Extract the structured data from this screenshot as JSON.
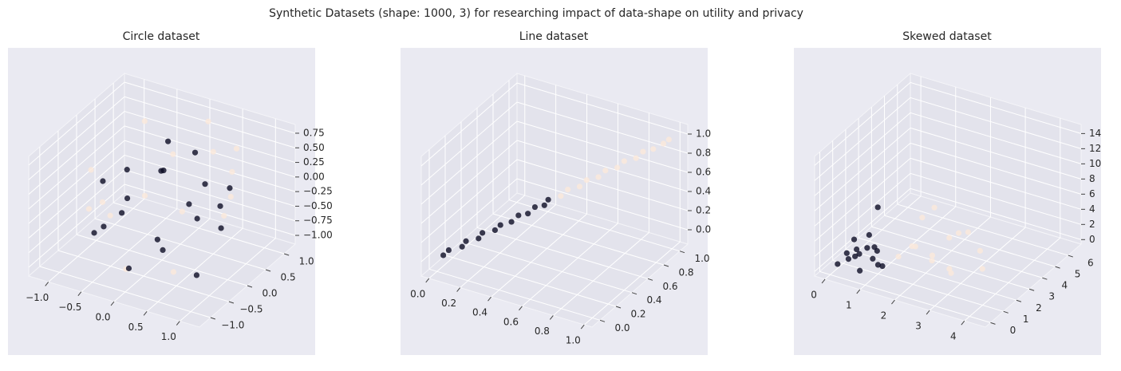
{
  "title": "Synthetic Datasets (shape: 1000, 3) for researching impact of data-shape on utility and privacy",
  "chart_data": [
    {
      "type": "scatter3d",
      "title": "Circle dataset",
      "xlim": [
        -1.3,
        1.3
      ],
      "ylim": [
        -1.3,
        1.3
      ],
      "zlim": [
        -1.15,
        0.9
      ],
      "xticks": [
        {
          "value": -1,
          "label": "−1.0"
        },
        {
          "value": -0.5,
          "label": "−0.5"
        },
        {
          "value": 0,
          "label": "0.0"
        },
        0.5,
        {
          "value": 1,
          "label": "1.0"
        }
      ],
      "yticks": [
        {
          "value": -1,
          "label": "−1.0"
        },
        {
          "value": -0.5,
          "label": "−0.5"
        },
        {
          "value": 0,
          "label": "0.0"
        },
        0.5,
        {
          "value": 1,
          "label": "1.0"
        }
      ],
      "zticks": [
        {
          "value": -1,
          "label": "−1.00"
        },
        {
          "value": -0.75,
          "label": "−0.75"
        },
        {
          "value": -0.5,
          "label": "−0.50"
        },
        {
          "value": -0.25,
          "label": "−0.25"
        },
        {
          "value": 0,
          "label": "0.00"
        },
        0.25,
        {
          "value": 0.5,
          "label": "0.50"
        },
        0.75
      ],
      "series": [
        {
          "color": "#fbe9db",
          "x": [
            0.5,
            -0.6,
            0.9,
            -0.8,
            0.2,
            0.7,
            -0.1,
            0.4,
            -0.9,
            0.0,
            1.0,
            -0.4,
            0.6,
            -1.0,
            0.3,
            0.8
          ],
          "y": [
            0.5,
            0.6,
            0.3,
            -0.5,
            0.9,
            -0.7,
            -0.8,
            -0.4,
            0.2,
            0.3,
            -0.1,
            -0.9,
            0.8,
            -0.2,
            -1.0,
            0.6
          ],
          "z": [
            0.6,
            0.7,
            0.5,
            0.4,
            0.8,
            0.3,
            -0.9,
            -1.0,
            -0.8,
            0.5,
            0.0,
            0.2,
            -0.3,
            -0.5,
            0.6,
            0.7
          ]
        },
        {
          "color": "#0b0b24",
          "x": [
            0.9,
            0.78,
            0.45,
            0.0,
            -0.45,
            -0.78,
            -0.9,
            -0.78,
            -0.45,
            0.0,
            0.45,
            0.78,
            0.3,
            -0.2,
            0.1,
            -0.5,
            0.6,
            -0.3,
            0.2,
            -0.7
          ],
          "y": [
            0.0,
            0.45,
            0.78,
            0.9,
            0.78,
            0.45,
            0.0,
            -0.45,
            -0.78,
            -0.9,
            -0.78,
            -0.45,
            0.2,
            0.4,
            -0.3,
            -0.2,
            0.1,
            0.7,
            0.6,
            0.3
          ],
          "z": [
            -0.3,
            0.1,
            -0.5,
            0.2,
            -0.2,
            -0.6,
            -0.1,
            -0.7,
            -0.3,
            -0.8,
            -0.4,
            -0.9,
            -0.2,
            0.1,
            -0.6,
            -0.4,
            0.3,
            0.4,
            -0.7,
            0.0
          ]
        }
      ]
    },
    {
      "type": "scatter3d",
      "title": "Line dataset",
      "xlim": [
        -0.05,
        1.05
      ],
      "ylim": [
        -0.1,
        1.1
      ],
      "zlim": [
        -0.15,
        1.1
      ],
      "xticks": [
        {
          "value": 0,
          "label": "0.0"
        },
        0.2,
        0.4,
        0.6,
        0.8,
        {
          "value": 1,
          "label": "1.0"
        }
      ],
      "yticks": [
        {
          "value": 0,
          "label": "0.0"
        },
        0.2,
        0.4,
        0.6,
        0.8,
        {
          "value": 1,
          "label": "1.0"
        }
      ],
      "zticks": [
        {
          "value": 0,
          "label": "0.0"
        },
        0.2,
        0.4,
        0.6,
        0.8,
        {
          "value": 1,
          "label": "1.0"
        }
      ],
      "series": [
        {
          "color": "#fbe9db",
          "x": [
            0.52,
            0.56,
            0.6,
            0.64,
            0.68,
            0.72,
            0.76,
            0.8,
            0.84,
            0.88,
            0.92,
            0.96,
            0.99
          ],
          "y": [
            0.54,
            0.55,
            0.62,
            0.63,
            0.7,
            0.71,
            0.78,
            0.79,
            0.86,
            0.87,
            0.92,
            0.97,
            0.98
          ],
          "z": [
            0.5,
            0.58,
            0.58,
            0.66,
            0.66,
            0.74,
            0.74,
            0.82,
            0.82,
            0.9,
            0.91,
            0.95,
            1.0
          ]
        },
        {
          "color": "#0b0b24",
          "x": [
            0.02,
            0.06,
            0.1,
            0.13,
            0.17,
            0.2,
            0.24,
            0.28,
            0.31,
            0.35,
            0.38,
            0.42,
            0.45,
            0.48
          ],
          "y": [
            0.04,
            0.03,
            0.12,
            0.11,
            0.19,
            0.18,
            0.26,
            0.25,
            0.33,
            0.34,
            0.4,
            0.41,
            0.47,
            0.46
          ],
          "z": [
            0.0,
            0.08,
            0.07,
            0.15,
            0.14,
            0.22,
            0.21,
            0.29,
            0.28,
            0.36,
            0.35,
            0.43,
            0.42,
            0.5
          ]
        }
      ]
    },
    {
      "type": "scatter3d",
      "title": "Skewed dataset",
      "xlim": [
        -0.3,
        4.6
      ],
      "ylim": [
        -0.4,
        7.0
      ],
      "zlim": [
        -0.6,
        15.2
      ],
      "xticks": [
        0,
        1,
        2,
        3,
        4
      ],
      "yticks": [
        0,
        1,
        2,
        3,
        4,
        5,
        6
      ],
      "zticks": [
        0,
        2,
        4,
        6,
        8,
        10,
        12,
        14
      ],
      "series": [
        {
          "color": "#fbe9db",
          "x": [
            1.4,
            1.7,
            2.0,
            2.3,
            1.9,
            2.6,
            3.0,
            1.6,
            2.2,
            2.8,
            3.4,
            1.8,
            2.4,
            2.1
          ],
          "y": [
            1.5,
            2.0,
            2.5,
            3.0,
            1.2,
            2.2,
            3.5,
            2.8,
            4.0,
            1.8,
            2.6,
            3.2,
            1.4,
            5.0
          ],
          "z": [
            1.5,
            2.5,
            1.0,
            3.0,
            4.0,
            0.5,
            1.5,
            5.0,
            2.0,
            0.8,
            1.0,
            6.0,
            2.5,
            0.5
          ]
        },
        {
          "color": "#0b0b24",
          "x": [
            0.1,
            0.3,
            0.5,
            0.7,
            0.9,
            0.2,
            0.4,
            0.6,
            0.8,
            1.0,
            0.3,
            0.5,
            0.7,
            1.2,
            0.4,
            0.6
          ],
          "y": [
            0.3,
            0.6,
            0.9,
            0.4,
            1.2,
            1.5,
            0.2,
            1.8,
            0.7,
            1.0,
            2.2,
            0.5,
            1.4,
            0.8,
            2.6,
            0.3
          ],
          "z": [
            0.5,
            1.0,
            1.5,
            0.3,
            2.0,
            0.8,
            2.5,
            1.2,
            3.0,
            0.6,
            1.8,
            4.0,
            0.4,
            1.0,
            5.0,
            2.2
          ]
        }
      ]
    }
  ]
}
